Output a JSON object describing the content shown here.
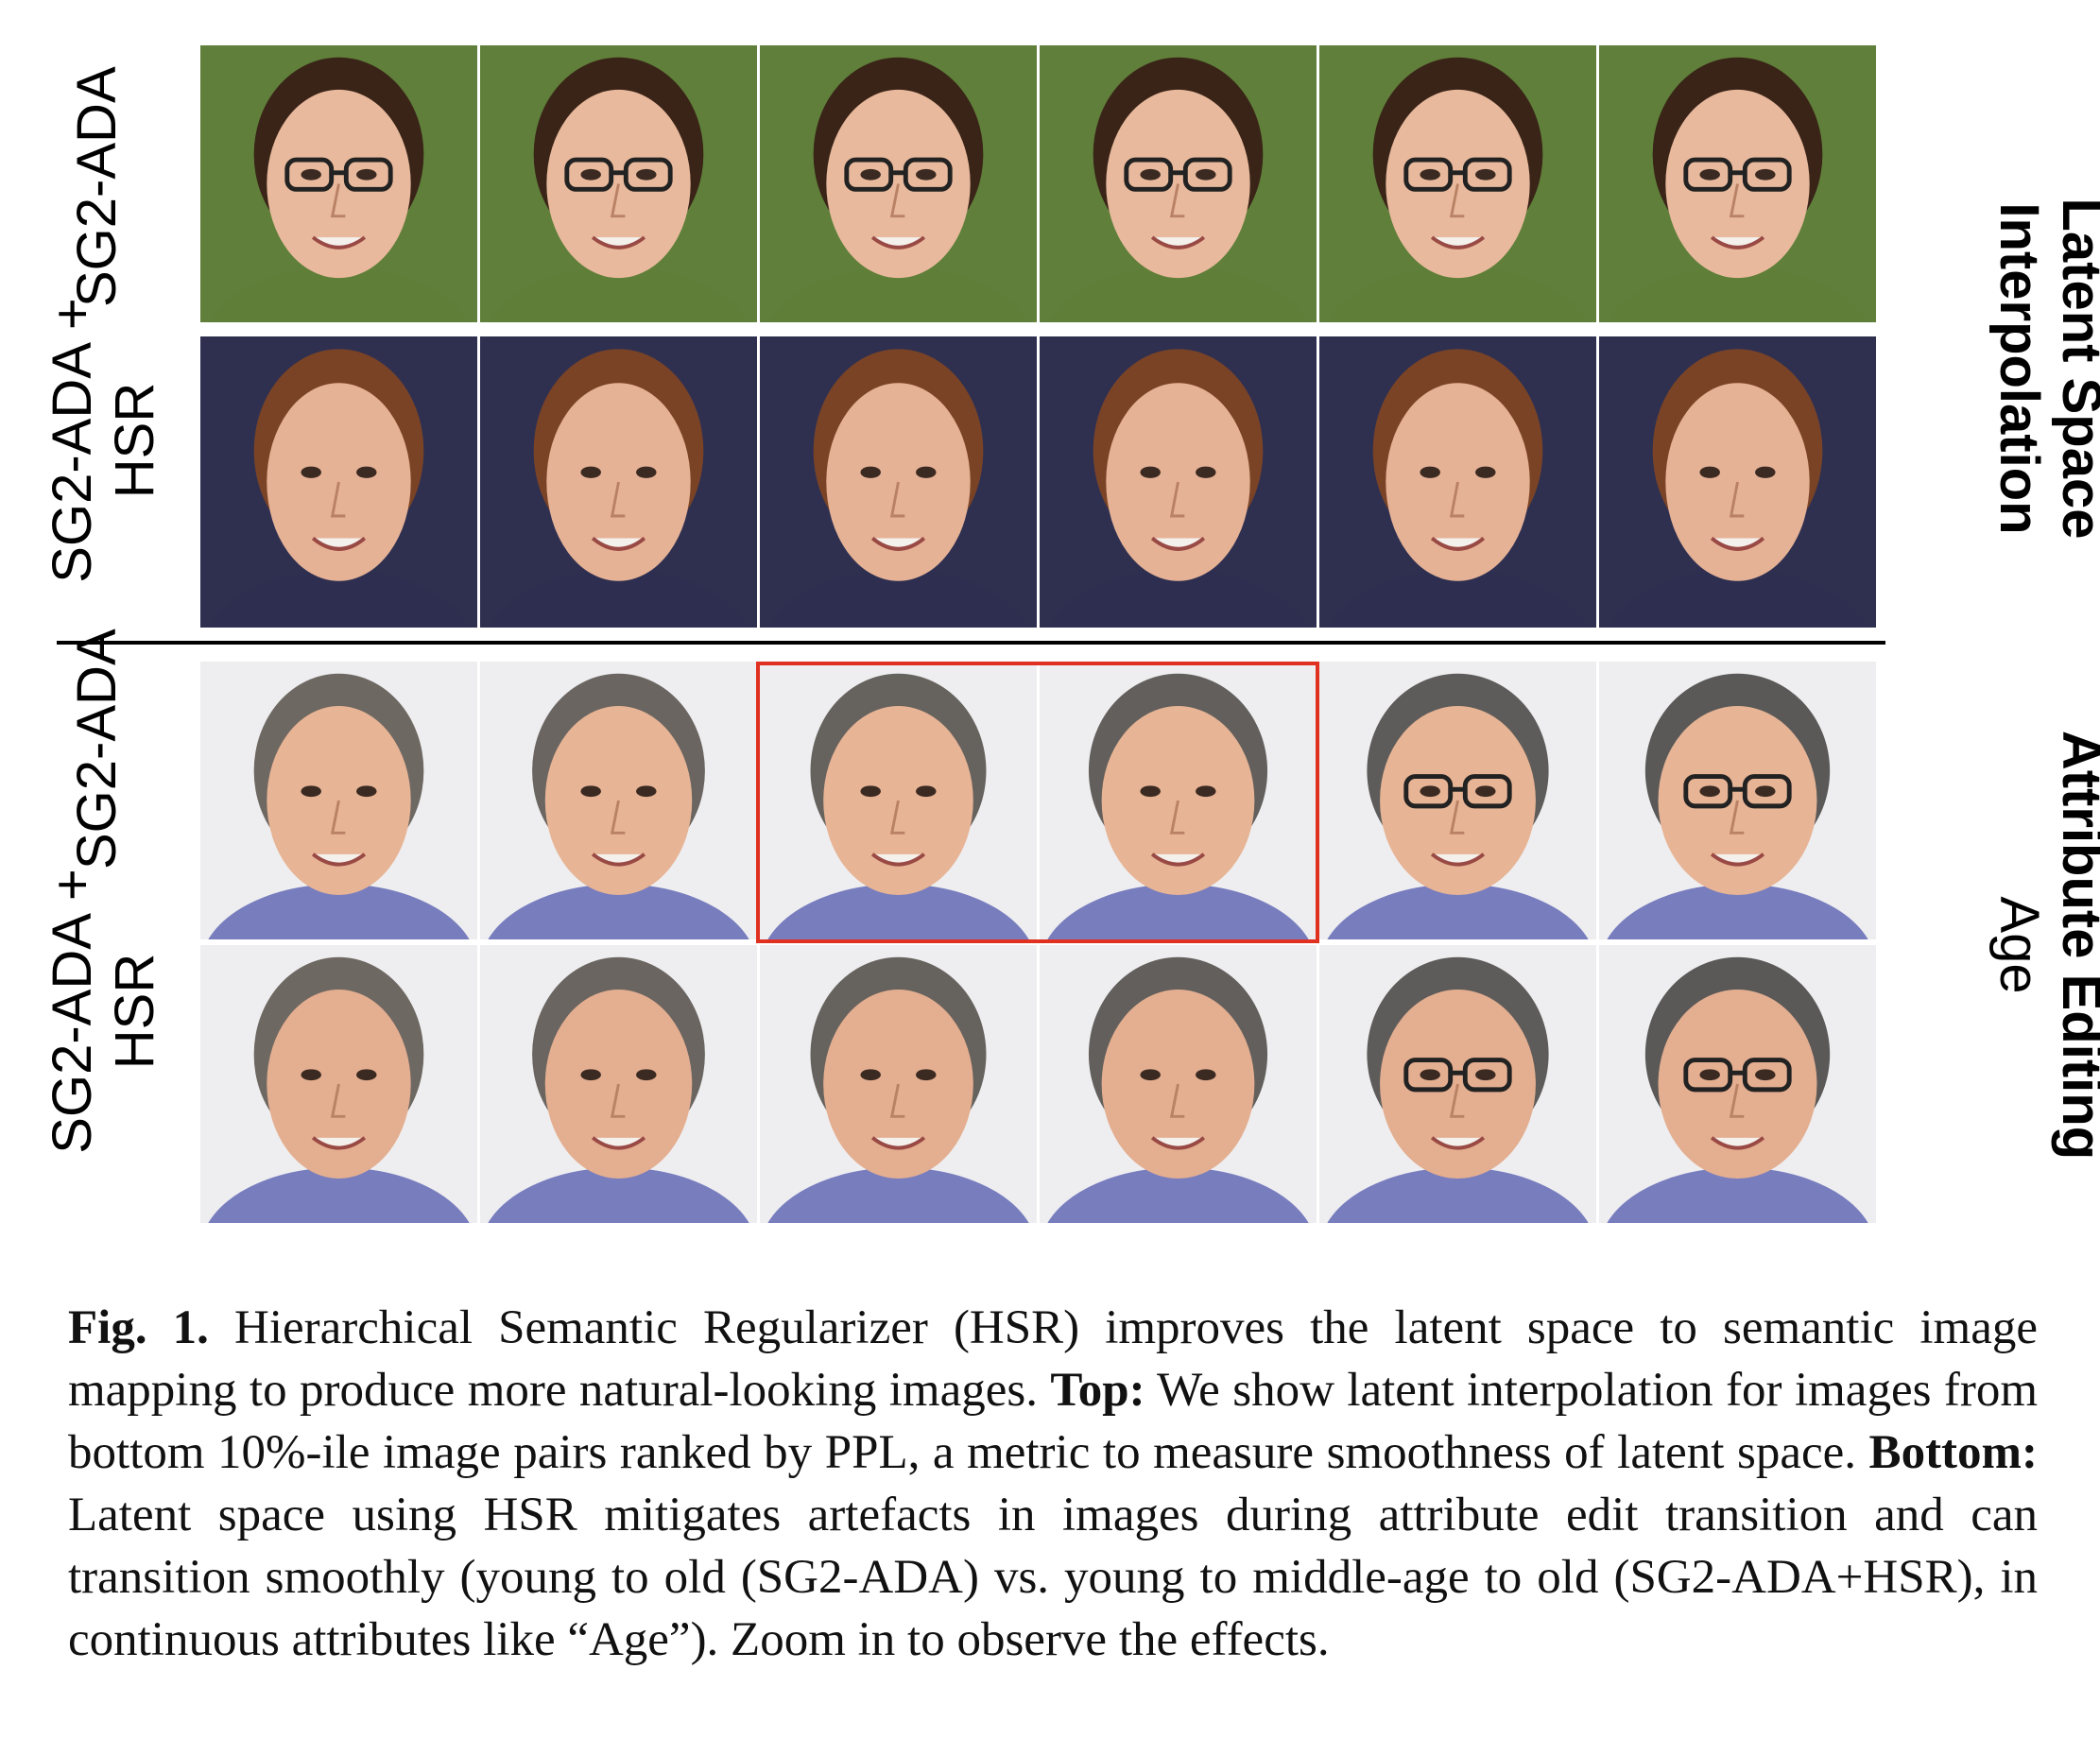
{
  "figure": {
    "sections": [
      {
        "title": "Latent Space Interpolation",
        "title_lines": [
          "Latent Space",
          "Interpolation"
        ],
        "rows": [
          {
            "label_lines": [
              "SG2-ADA"
            ],
            "palette": {
              "bg": "#5f7f3a",
              "skin": "#e8b99c",
              "hair": "#3a2418"
            }
          },
          {
            "label_lines": [
              "SG2-ADA +",
              "HSR"
            ],
            "palette": {
              "bg": "#2f3050",
              "skin": "#e6b296",
              "hair": "#7a4326"
            }
          }
        ]
      },
      {
        "title": "Attribute Editing",
        "subtitle": "Age",
        "rows": [
          {
            "label_lines": [
              "SG2-ADA"
            ],
            "palette": {
              "bg": "#eeeef0",
              "skin": "#e7b495",
              "hair": "#6a625a",
              "cloth": "#6a70b8"
            }
          },
          {
            "label_lines": [
              "SG2-ADA +",
              "HSR"
            ],
            "palette": {
              "bg": "#eeeef0",
              "skin": "#e4ae90",
              "hair": "#6a625a",
              "cloth": "#6a70b8"
            }
          }
        ]
      }
    ],
    "highlight_color": "#e03020"
  },
  "caption": {
    "fig_label": "Fig. 1.",
    "text1": " Hierarchical Semantic Regularizer (HSR) improves the latent space to semantic image mapping to produce more natural-looking images. ",
    "top_label": "Top:",
    "text2": " We show latent interpolation for images from bottom 10%-ile image pairs ranked by PPL, a metric to measure smoothness of latent space. ",
    "bottom_label": "Bottom:",
    "text3": " Latent space using HSR mitigates artefacts in images during attribute edit transition and can transition smoothly (young to old (SG2-ADA) vs. young to middle-age to old (SG2-ADA+HSR), in continuous attributes like “Age”). Zoom in to observe the effects."
  }
}
